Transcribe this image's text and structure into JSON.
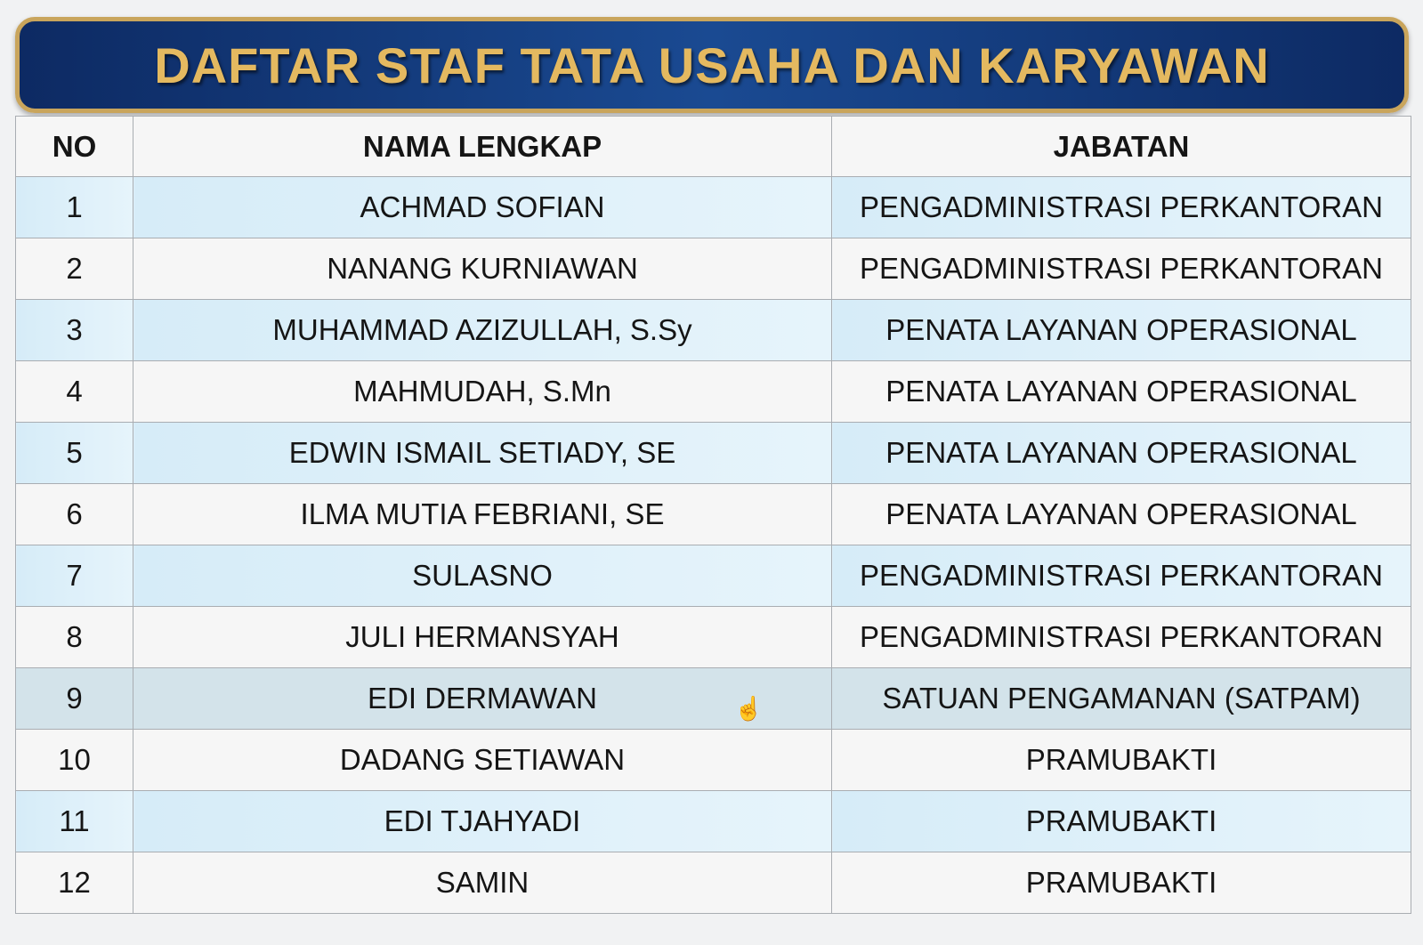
{
  "title": "DAFTAR STAF TATA USAHA DAN KARYAWAN",
  "columns": [
    "NO",
    "NAMA LENGKAP",
    "JABATAN"
  ],
  "rows": [
    {
      "no": "1",
      "name": "ACHMAD SOFIAN",
      "position": "PENGADMINISTRASI PERKANTORAN"
    },
    {
      "no": "2",
      "name": "NANANG KURNIAWAN",
      "position": "PENGADMINISTRASI PERKANTORAN"
    },
    {
      "no": "3",
      "name": "MUHAMMAD AZIZULLAH, S.Sy",
      "position": "PENATA LAYANAN OPERASIONAL"
    },
    {
      "no": "4",
      "name": "MAHMUDAH, S.Mn",
      "position": "PENATA LAYANAN OPERASIONAL"
    },
    {
      "no": "5",
      "name": "EDWIN ISMAIL SETIADY, SE",
      "position": "PENATA LAYANAN OPERASIONAL"
    },
    {
      "no": "6",
      "name": "ILMA MUTIA FEBRIANI, SE",
      "position": "PENATA LAYANAN OPERASIONAL"
    },
    {
      "no": "7",
      "name": "SULASNO",
      "position": "PENGADMINISTRASI PERKANTORAN"
    },
    {
      "no": "8",
      "name": "JULI HERMANSYAH",
      "position": "PENGADMINISTRASI PERKANTORAN"
    },
    {
      "no": "9",
      "name": "EDI DERMAWAN",
      "position": "SATUAN PENGAMANAN (SATPAM)"
    },
    {
      "no": "10",
      "name": "DADANG SETIAWAN",
      "position": "PRAMUBAKTI"
    },
    {
      "no": "11",
      "name": "EDI TJAHYADI",
      "position": "PRAMUBAKTI"
    },
    {
      "no": "12",
      "name": "SAMIN",
      "position": "PRAMUBAKTI"
    }
  ],
  "highlighted_row": 9,
  "colors": {
    "banner": "#0d2a63",
    "title_gold": "#e4b960",
    "stripe": "#d6ecf8",
    "hover": "#d3e3ea"
  },
  "cursor_icon": "hand-pointer-icon"
}
